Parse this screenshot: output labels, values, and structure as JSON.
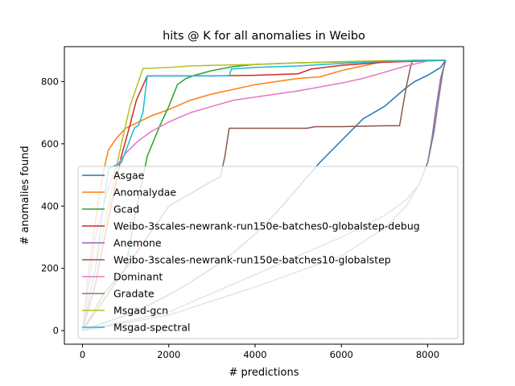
{
  "chart_data": {
    "type": "line",
    "title": "hits @ K for all anomalies in Weibo",
    "xlabel": "# predictions",
    "ylabel": "# anomalies found",
    "xlim": [
      -420,
      8830
    ],
    "ylim": [
      -43.5,
      912
    ],
    "xticks": [
      0,
      2000,
      4000,
      6000,
      8000
    ],
    "yticks": [
      0,
      200,
      400,
      600,
      800
    ],
    "grid": false,
    "legend_position": "lower-left",
    "series": [
      {
        "name": "Asgae",
        "color": "#1f77b4",
        "x": [
          0,
          500,
          1000,
          1500,
          2000,
          2500,
          3000,
          3500,
          4000,
          4500,
          5000,
          5500,
          6000,
          6500,
          7000,
          7500,
          7700,
          8000,
          8300,
          8414
        ],
        "y": [
          0,
          25,
          50,
          80,
          115,
          155,
          200,
          250,
          310,
          380,
          460,
          540,
          610,
          680,
          720,
          780,
          800,
          820,
          845,
          868
        ]
      },
      {
        "name": "Anomalydae",
        "color": "#ff7f0e",
        "x": [
          0,
          150,
          350,
          500,
          600,
          800,
          1000,
          1300,
          1600,
          2000,
          2500,
          3000,
          3500,
          4000,
          4500,
          5000,
          5500,
          6000,
          6500,
          7000,
          7600,
          8414
        ],
        "y": [
          0,
          200,
          400,
          520,
          580,
          620,
          650,
          670,
          690,
          710,
          740,
          760,
          775,
          790,
          800,
          810,
          815,
          835,
          850,
          865,
          868,
          868
        ]
      },
      {
        "name": "Gcad",
        "color": "#2ca02c",
        "x": [
          0,
          500,
          1000,
          1200,
          1500,
          1800,
          2000,
          2200,
          2400,
          2600,
          3000,
          3500,
          4000,
          5000,
          6000,
          7000,
          8414
        ],
        "y": [
          0,
          120,
          200,
          360,
          560,
          660,
          720,
          790,
          810,
          820,
          835,
          848,
          855,
          860,
          863,
          866,
          868
        ]
      },
      {
        "name": "Weibo-3scales-newrank-run150e-batches0-globalstep-debug",
        "color": "#d62728",
        "x": [
          0,
          300,
          600,
          900,
          1100,
          1250,
          1500,
          2000,
          3000,
          4000,
          5000,
          5300,
          6000,
          7000,
          8414
        ],
        "y": [
          0,
          150,
          360,
          560,
          660,
          740,
          818,
          818,
          818,
          820,
          825,
          840,
          852,
          862,
          868
        ]
      },
      {
        "name": "Anemone",
        "color": "#9467bd",
        "x": [
          0,
          2000,
          4000,
          6000,
          7000,
          7500,
          7800,
          8000,
          8100,
          8200,
          8300,
          8414
        ],
        "y": [
          0,
          50,
          140,
          240,
          330,
          400,
          470,
          540,
          620,
          720,
          810,
          868
        ]
      },
      {
        "name": "Weibo-3scales-newrank-run150e-batches10-globalstep",
        "color": "#8c564b",
        "x": [
          0,
          1000,
          2000,
          3000,
          3200,
          3300,
          3400,
          4500,
          5200,
          5400,
          6000,
          7000,
          7350,
          7400,
          7500,
          7600,
          7650,
          8414
        ],
        "y": [
          0,
          200,
          400,
          480,
          495,
          560,
          650,
          650,
          650,
          655,
          655,
          658,
          658,
          700,
          780,
          845,
          868,
          868
        ]
      },
      {
        "name": "Dominant",
        "color": "#e377c2",
        "x": [
          0,
          300,
          600,
          800,
          1000,
          1300,
          1600,
          2000,
          2500,
          3000,
          3500,
          4000,
          5000,
          6000,
          6500,
          7000,
          7500,
          8000,
          8414
        ],
        "y": [
          0,
          300,
          460,
          530,
          570,
          610,
          640,
          670,
          700,
          720,
          740,
          750,
          770,
          795,
          810,
          830,
          850,
          866,
          868
        ]
      },
      {
        "name": "Gradate",
        "color": "#7f7f7f",
        "x": [
          0,
          2000,
          4000,
          6000,
          7000,
          7500,
          7800,
          8000,
          8150,
          8250,
          8350,
          8414
        ],
        "y": [
          0,
          60,
          180,
          300,
          370,
          420,
          470,
          540,
          640,
          740,
          830,
          868
        ]
      },
      {
        "name": "Msgad-gcn",
        "color": "#bcbd22",
        "x": [
          0,
          300,
          600,
          900,
          1100,
          1400,
          1600,
          2000,
          2500,
          3000,
          4000,
          5000,
          6000,
          7000,
          8414
        ],
        "y": [
          0,
          200,
          400,
          600,
          720,
          842,
          843,
          845,
          850,
          852,
          855,
          860,
          864,
          867,
          868
        ]
      },
      {
        "name": "Msgad-spectral",
        "color": "#17becf",
        "x": [
          0,
          300,
          600,
          900,
          1200,
          1300,
          1400,
          1500,
          2000,
          3000,
          3400,
          3450,
          4000,
          5000,
          6000,
          7000,
          8414
        ],
        "y": [
          0,
          200,
          520,
          540,
          650,
          660,
          700,
          818,
          818,
          818,
          818,
          840,
          845,
          850,
          858,
          865,
          868
        ]
      }
    ]
  }
}
